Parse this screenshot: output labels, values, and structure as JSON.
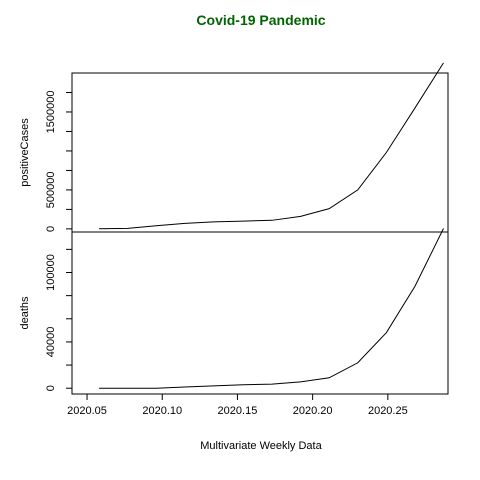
{
  "chart_data": {
    "type": "line",
    "title": "Covid-19 Pandemic",
    "title_color": "#006400",
    "xlabel": "Multivariate Weekly Data",
    "x_tick_labels": [
      "2020.05",
      "2020.10",
      "2020.15",
      "2020.20",
      "2020.25"
    ],
    "x_ticks": [
      2020.05,
      2020.1,
      2020.15,
      2020.2,
      2020.25
    ],
    "xlim": [
      2020.04,
      2020.29
    ],
    "x": [
      2020.058,
      2020.077,
      2020.096,
      2020.115,
      2020.134,
      2020.154,
      2020.173,
      2020.192,
      2020.211,
      2020.23,
      2020.249,
      2020.268,
      2020.287
    ],
    "panels": [
      {
        "ylabel": "positiveCases",
        "ylim": [
          -40000,
          2000000
        ],
        "y_ticks": [
          0,
          500000,
          1000000,
          1500000
        ],
        "y_tick_labels": [
          "0",
          "500000",
          "",
          "1500000"
        ],
        "minor_y_ticks": [
          250000,
          750000,
          1250000,
          1750000
        ],
        "series": [
          {
            "values": [
              1000,
              7000,
              40000,
              70000,
              90000,
              100000,
              110000,
              160000,
              260000,
              500000,
              980000,
              1550000,
              2130000
            ]
          }
        ]
      },
      {
        "ylabel": "deaths",
        "ylim": [
          -5000,
          135000
        ],
        "y_ticks": [
          0,
          40000,
          100000
        ],
        "y_tick_labels": [
          "0",
          "40000",
          "100000"
        ],
        "minor_y_ticks": [
          20000,
          60000,
          80000,
          120000
        ],
        "series": [
          {
            "values": [
              0,
              0,
              0,
              1000,
              2000,
              3000,
              3500,
              5500,
              9000,
              22000,
              48000,
              88000,
              138000
            ]
          }
        ]
      }
    ],
    "grid": false,
    "line_color": "#000000"
  }
}
